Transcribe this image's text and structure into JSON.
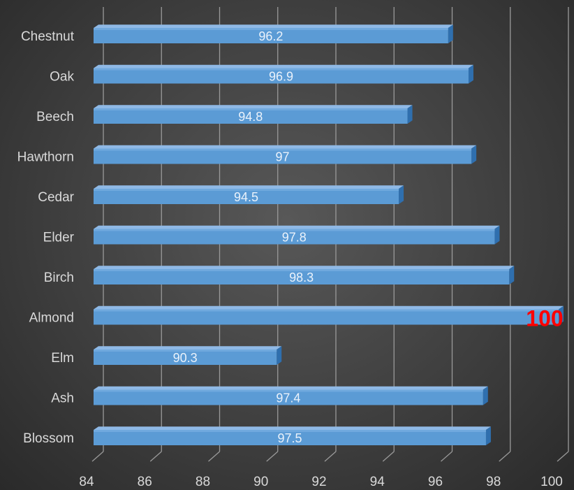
{
  "chart_data": {
    "type": "bar",
    "orientation": "horizontal",
    "style": "3d",
    "categories": [
      "Chestnut",
      "Oak",
      "Beech",
      "Hawthorn",
      "Cedar",
      "Elder",
      "Birch",
      "Almond",
      "Elm",
      "Ash",
      "Blossom"
    ],
    "values": [
      96.2,
      96.9,
      94.8,
      97,
      94.5,
      97.8,
      98.3,
      100,
      90.3,
      97.4,
      97.5
    ],
    "data_labels": [
      "96.2",
      "96.9",
      "94.8",
      "97",
      "94.5",
      "97.8",
      "98.3",
      "100",
      "90.3",
      "97.4",
      "97.5"
    ],
    "highlight": {
      "category": "Almond",
      "color": "#ff0000"
    },
    "xlim": [
      84,
      100
    ],
    "xticks": [
      "84",
      "86",
      "88",
      "90",
      "92",
      "94",
      "96",
      "98",
      "100"
    ],
    "title": "",
    "xlabel": "",
    "ylabel": "",
    "grid": true,
    "legend": false,
    "colors": {
      "bar_front": "#5b9bd5",
      "bar_top": "#8fb9e6",
      "bar_side": "#2f6fae",
      "grid": "#9a9a9a",
      "text": "#d9d9d9",
      "data_label": "#eaf2fb"
    }
  }
}
